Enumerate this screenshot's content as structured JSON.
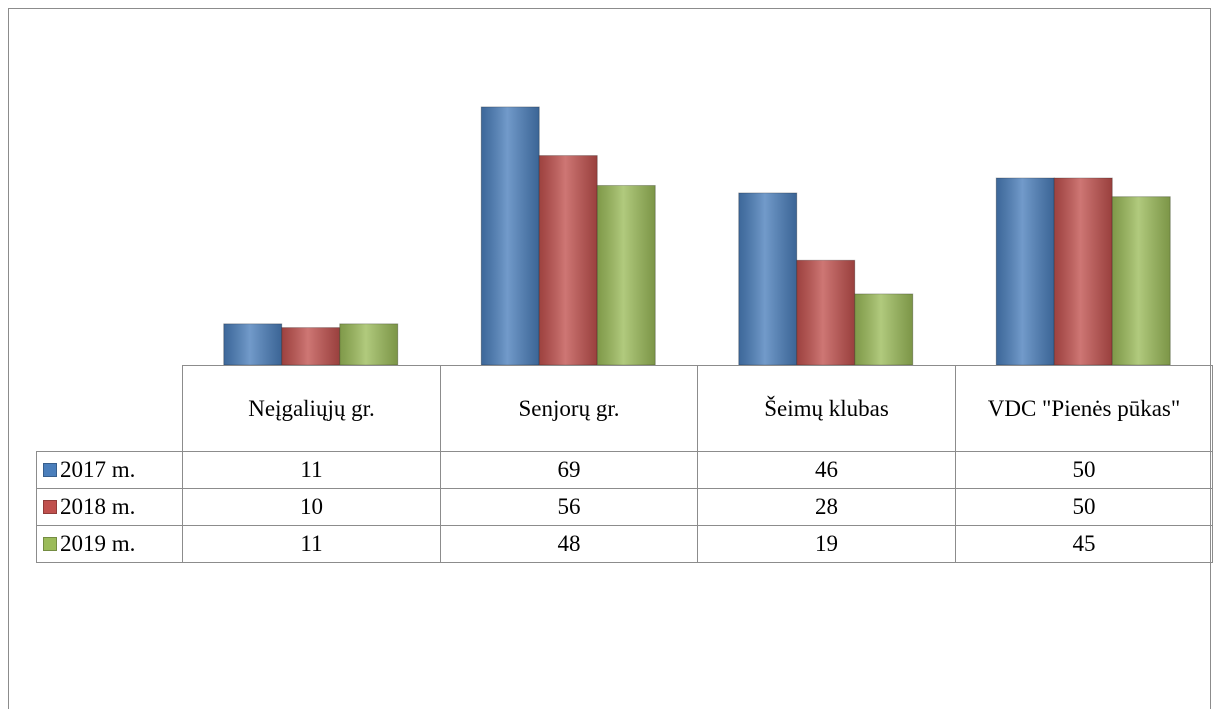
{
  "chart_data": {
    "type": "bar",
    "categories": [
      "Neįgaliųjų gr.",
      "Senjorų gr.",
      "Šeimų klubas",
      "VDC \"Pienės pūkas\""
    ],
    "series": [
      {
        "name": "2017 m.",
        "color": "#4a7ebb",
        "values": [
          11,
          69,
          46,
          50
        ]
      },
      {
        "name": "2018 m.",
        "color": "#c0504d",
        "values": [
          10,
          56,
          28,
          50
        ]
      },
      {
        "name": "2019 m.",
        "color": "#9bbb59",
        "values": [
          11,
          48,
          19,
          45
        ]
      }
    ]
  }
}
